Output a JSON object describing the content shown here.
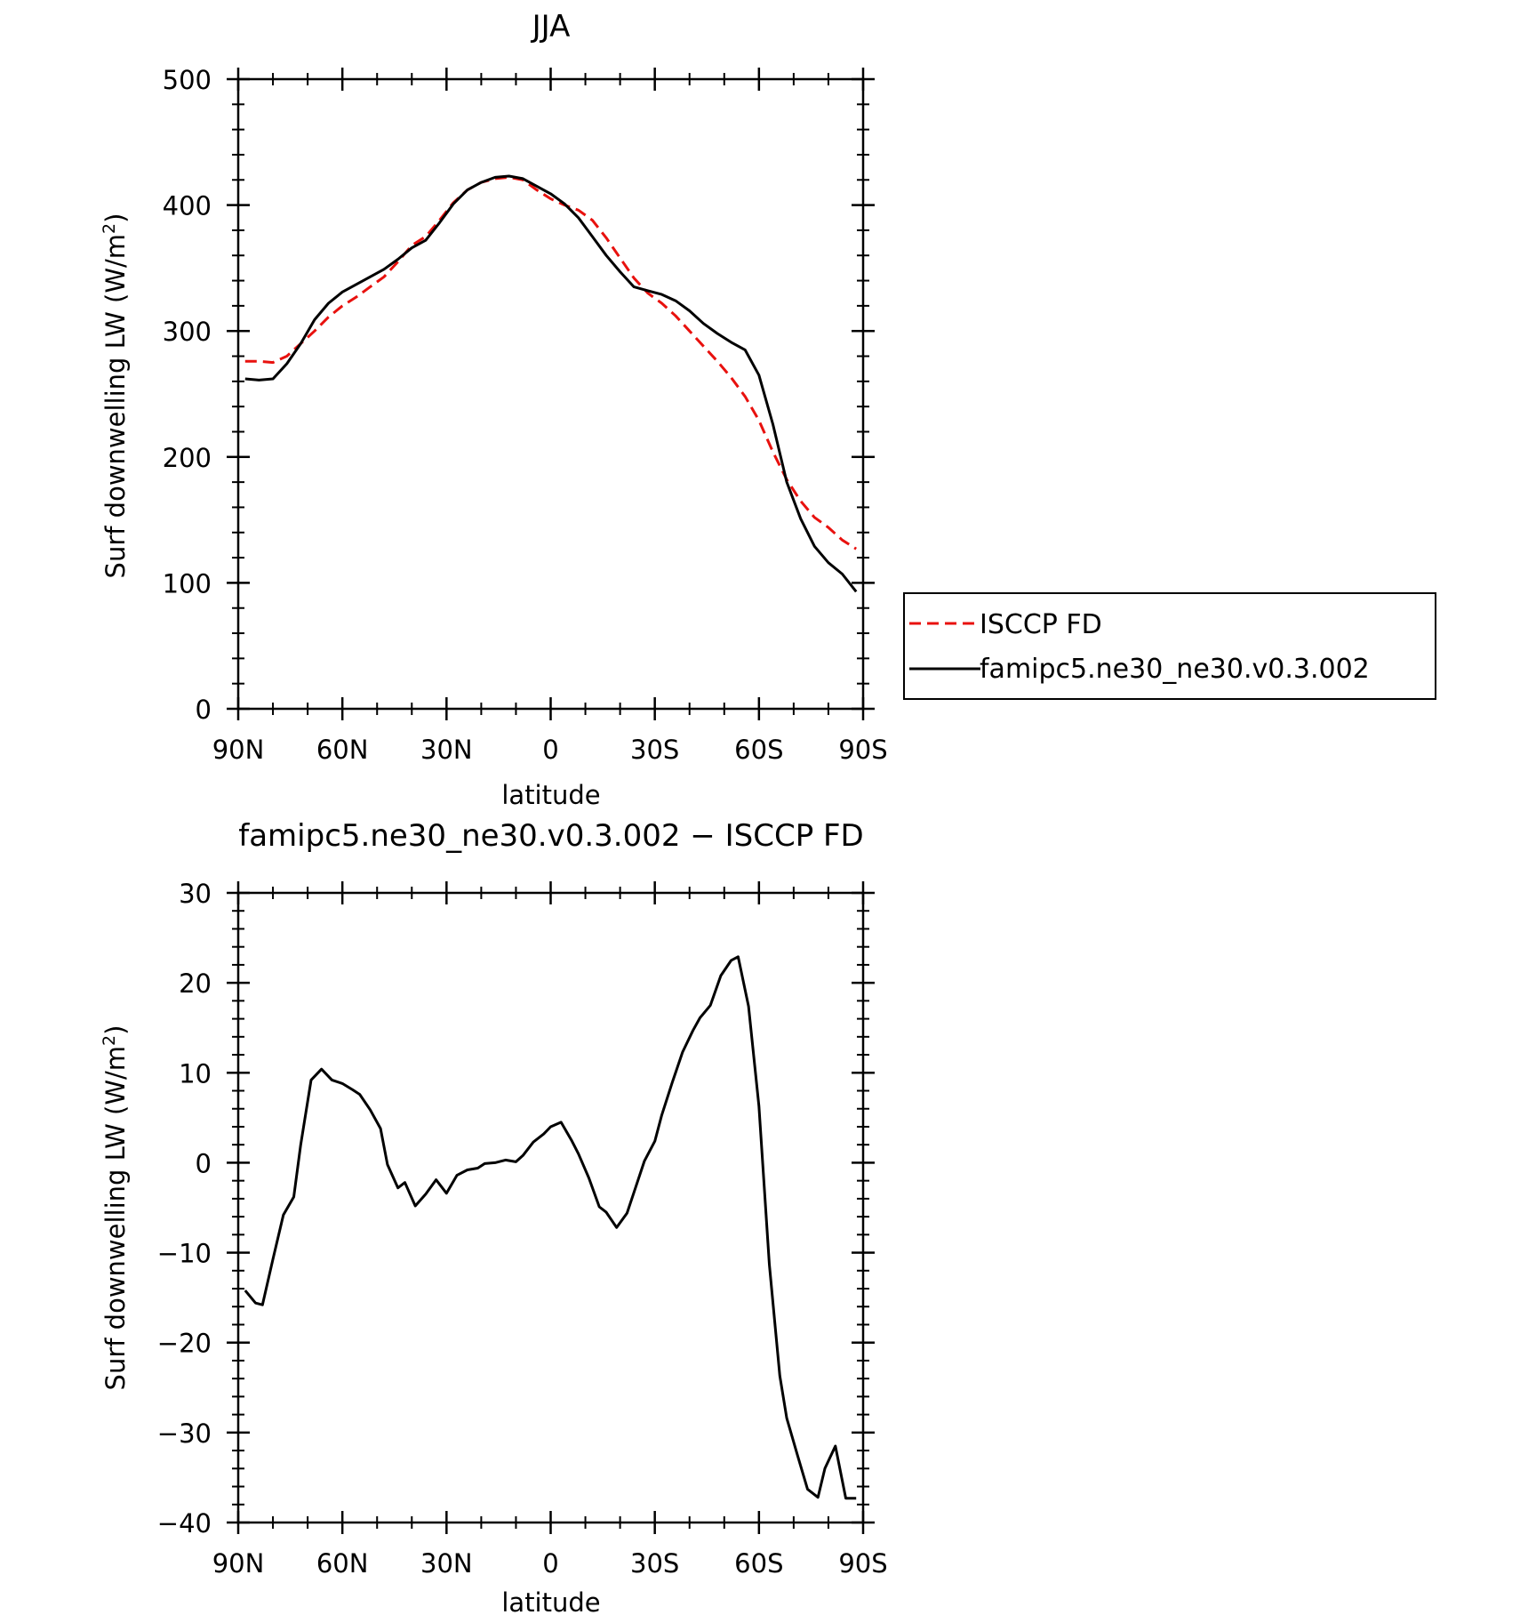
{
  "chart_data": [
    {
      "type": "line",
      "title": "JJA",
      "xlabel": "latitude",
      "ylabel": "Surf downwelling LW (W/m²)",
      "ylabel_main": "Surf downwelling LW (W/m",
      "ylabel_sup": "2",
      "ylabel_end": ")",
      "xlim": [
        90,
        -90
      ],
      "ylim": [
        0,
        500
      ],
      "xticks": [
        {
          "v": 90,
          "label": "90N"
        },
        {
          "v": 60,
          "label": "60N"
        },
        {
          "v": 30,
          "label": "30N"
        },
        {
          "v": 0,
          "label": "0"
        },
        {
          "v": -30,
          "label": "30S"
        },
        {
          "v": -60,
          "label": "60S"
        },
        {
          "v": -90,
          "label": "90S"
        }
      ],
      "yticks": [
        {
          "v": 0,
          "label": "0"
        },
        {
          "v": 100,
          "label": "100"
        },
        {
          "v": 200,
          "label": "200"
        },
        {
          "v": 300,
          "label": "300"
        },
        {
          "v": 400,
          "label": "400"
        },
        {
          "v": 500,
          "label": "500"
        }
      ],
      "legend_position": "right",
      "series": [
        {
          "name": "ISCCP FD",
          "color": "#e8110e",
          "dash": "dashed",
          "x": [
            88,
            84,
            80,
            76,
            72,
            68,
            64,
            60,
            56,
            52,
            48,
            44,
            40,
            36,
            32,
            28,
            24,
            20,
            16,
            12,
            8,
            4,
            0,
            -4,
            -8,
            -12,
            -16,
            -20,
            -24,
            -28,
            -32,
            -36,
            -40,
            -44,
            -48,
            -52,
            -56,
            -60,
            -64,
            -68,
            -72,
            -76,
            -80,
            -84,
            -88
          ],
          "y": [
            276,
            276,
            275,
            280,
            290,
            300,
            311,
            320,
            327,
            335,
            343,
            355,
            368,
            375,
            388,
            402,
            412,
            418,
            421,
            422,
            420,
            412,
            405,
            400,
            396,
            388,
            374,
            358,
            342,
            330,
            322,
            312,
            300,
            288,
            276,
            263,
            248,
            229,
            204,
            182,
            165,
            152,
            144,
            134,
            127
          ]
        },
        {
          "name": "famipc5.ne30_ne30.v0.3.002",
          "color": "#000000",
          "dash": "solid",
          "x": [
            88,
            84,
            80,
            76,
            72,
            68,
            64,
            60,
            56,
            52,
            48,
            44,
            40,
            36,
            32,
            28,
            24,
            20,
            16,
            12,
            8,
            4,
            0,
            -4,
            -8,
            -12,
            -16,
            -20,
            -24,
            -28,
            -32,
            -36,
            -40,
            -44,
            -48,
            -52,
            -56,
            -60,
            -64,
            -68,
            -72,
            -76,
            -80,
            -84,
            -88
          ],
          "y": [
            262,
            261,
            262,
            274,
            290,
            309,
            322,
            331,
            337,
            343,
            349,
            357,
            366,
            372,
            386,
            401,
            412,
            418,
            422,
            423,
            421,
            415,
            409,
            401,
            390,
            375,
            360,
            347,
            335,
            332,
            329,
            324,
            316,
            306,
            298,
            291,
            285,
            265,
            226,
            180,
            151,
            129,
            116,
            107,
            93
          ]
        }
      ]
    },
    {
      "type": "line",
      "title": "famipc5.ne30_ne30.v0.3.002 − ISCCP FD",
      "xlabel": "latitude",
      "ylabel": "Surf downwelling LW (W/m²)",
      "ylabel_main": "Surf downwelling LW (W/m",
      "ylabel_sup": "2",
      "ylabel_end": ")",
      "xlim": [
        90,
        -90
      ],
      "ylim": [
        -40,
        30
      ],
      "xticks": [
        {
          "v": 90,
          "label": "90N"
        },
        {
          "v": 60,
          "label": "60N"
        },
        {
          "v": 30,
          "label": "30N"
        },
        {
          "v": 0,
          "label": "0"
        },
        {
          "v": -30,
          "label": "30S"
        },
        {
          "v": -60,
          "label": "60S"
        },
        {
          "v": -90,
          "label": "90S"
        }
      ],
      "yticks": [
        {
          "v": -40,
          "label": "−40"
        },
        {
          "v": -30,
          "label": "−30"
        },
        {
          "v": -20,
          "label": "−20"
        },
        {
          "v": -10,
          "label": "−10"
        },
        {
          "v": 0,
          "label": "0"
        },
        {
          "v": 10,
          "label": "10"
        },
        {
          "v": 20,
          "label": "20"
        },
        {
          "v": 30,
          "label": "30"
        }
      ],
      "series": [
        {
          "color": "#000000",
          "dash": "solid",
          "x": [
            88,
            85,
            83,
            80,
            77,
            74,
            72,
            69,
            66,
            63,
            60,
            57,
            55,
            52,
            49,
            47,
            44,
            42,
            39,
            36,
            33,
            30,
            27,
            24,
            21,
            19,
            16,
            13,
            10,
            8,
            5,
            2,
            0,
            -3,
            -6,
            -8,
            -11,
            -14,
            -16,
            -19,
            -22,
            -24,
            -27,
            -30,
            -32,
            -35,
            -38,
            -41,
            -43,
            -46,
            -49,
            -52,
            -54,
            -57,
            -60,
            -63,
            -66,
            -68,
            -71,
            -74,
            -77,
            -79,
            -82,
            -85,
            -88
          ],
          "y": [
            -14.2,
            -15.6,
            -15.8,
            -10.7,
            -5.8,
            -3.8,
            2.0,
            9.2,
            10.4,
            9.2,
            8.8,
            8.1,
            7.6,
            5.9,
            3.8,
            -0.2,
            -2.8,
            -2.2,
            -4.8,
            -3.5,
            -1.9,
            -3.4,
            -1.4,
            -0.8,
            -0.6,
            -0.1,
            0.0,
            0.3,
            0.1,
            0.8,
            2.3,
            3.2,
            4.0,
            4.5,
            2.5,
            1.0,
            -1.7,
            -4.9,
            -5.5,
            -7.2,
            -5.6,
            -3.3,
            0.2,
            2.4,
            5.3,
            8.9,
            12.3,
            14.7,
            16.1,
            17.5,
            20.8,
            22.5,
            22.9,
            17.4,
            6.3,
            -11.3,
            -23.7,
            -28.4,
            -32.4,
            -36.3,
            -37.2,
            -34.0,
            -31.5,
            -37.3,
            -37.3
          ]
        }
      ]
    }
  ]
}
